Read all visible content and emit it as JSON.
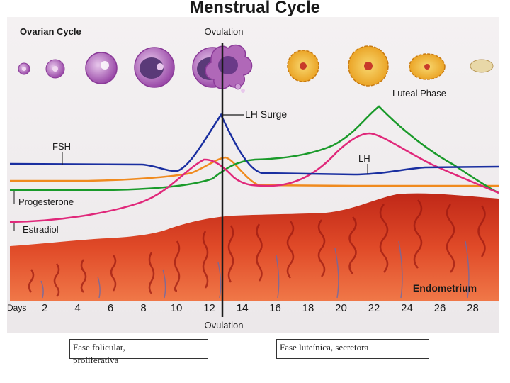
{
  "title": "Menstrual Cycle",
  "labels": {
    "ovarian_cycle": "Ovarian Cycle",
    "ovulation_top": "Ovulation",
    "lh_surge": "LH Surge",
    "luteal_phase": "Luteal Phase",
    "fsh": "FSH",
    "lh": "LH",
    "progesterone": "Progesterone",
    "estradiol": "Estradiol",
    "endometrium": "Endometrium",
    "days": "Days",
    "ovulation_bottom": "Ovulation"
  },
  "day_ticks": [
    "2",
    "4",
    "6",
    "8",
    "10",
    "12",
    "14",
    "16",
    "18",
    "20",
    "22",
    "24",
    "26",
    "28"
  ],
  "captions": {
    "left_line1": "Fase folicular,",
    "left_line2": "proliferativa",
    "right": "Fase luteínica, secretora"
  },
  "colors": {
    "fsh": "#1a2fa0",
    "lh": "#e0287a",
    "progesterone": "#1a9a2a",
    "estradiol": "#f08a1e",
    "endometrium": "#d8341c",
    "follicle": "#a04ca8",
    "corpus_luteum": "#f0a820"
  }
}
